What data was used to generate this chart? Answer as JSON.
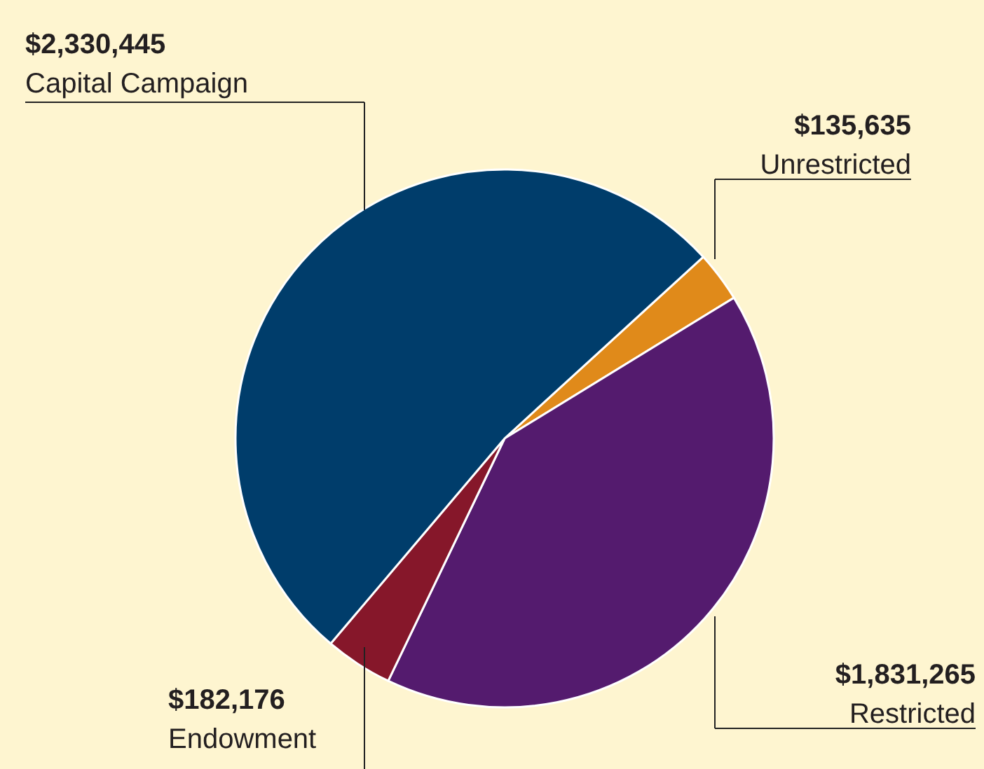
{
  "chart_data": {
    "type": "pie",
    "categories": [
      "Unrestricted",
      "Restricted",
      "Endowment",
      "Capital Campaign"
    ],
    "values": [
      135635,
      1831265,
      182176,
      2330445
    ],
    "value_labels": [
      "$135,635",
      "$1,831,265",
      "$182,176",
      "$2,330,445"
    ],
    "colors": [
      "#e08a1a",
      "#541b6e",
      "#86172a",
      "#003d6b"
    ]
  }
}
